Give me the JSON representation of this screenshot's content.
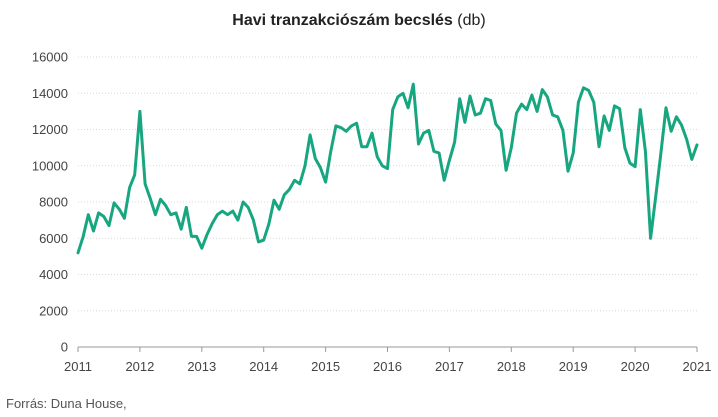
{
  "chart_data": {
    "type": "line",
    "title_bold": "Havi tranzakciószám becslés",
    "title_unit": "(db)",
    "xlabel": "",
    "ylabel": "",
    "x_ticks": [
      "2011",
      "2012",
      "2013",
      "2014",
      "2015",
      "2016",
      "2017",
      "2018",
      "2019",
      "2020",
      "2021"
    ],
    "y_ticks": [
      "16000",
      "14000",
      "12000",
      "10000",
      "8000",
      "6000",
      "4000",
      "2000",
      "0"
    ],
    "ylim": [
      0,
      16000
    ],
    "xlim": [
      "2011-01",
      "2021-01"
    ],
    "grid": "horizontal",
    "line_color": "#17a680",
    "series": [
      {
        "x": [
          "2011-01",
          "2011-02",
          "2011-03",
          "2011-04",
          "2011-05",
          "2011-06",
          "2011-07",
          "2011-08",
          "2011-09",
          "2011-10",
          "2011-11",
          "2011-12",
          "2012-01",
          "2012-02",
          "2012-03",
          "2012-04",
          "2012-05",
          "2012-06",
          "2012-07",
          "2012-08",
          "2012-09",
          "2012-10",
          "2012-11",
          "2012-12",
          "2013-01",
          "2013-02",
          "2013-03",
          "2013-04",
          "2013-05",
          "2013-06",
          "2013-07",
          "2013-08",
          "2013-09",
          "2013-10",
          "2013-11",
          "2013-12",
          "2014-01",
          "2014-02",
          "2014-03",
          "2014-04",
          "2014-05",
          "2014-06",
          "2014-07",
          "2014-08",
          "2014-09",
          "2014-10",
          "2014-11",
          "2014-12",
          "2015-01",
          "2015-02",
          "2015-03",
          "2015-04",
          "2015-05",
          "2015-06",
          "2015-07",
          "2015-08",
          "2015-09",
          "2015-10",
          "2015-11",
          "2015-12",
          "2016-01",
          "2016-02",
          "2016-03",
          "2016-04",
          "2016-05",
          "2016-06",
          "2016-07",
          "2016-08",
          "2016-09",
          "2016-10",
          "2016-11",
          "2016-12",
          "2017-01",
          "2017-02",
          "2017-03",
          "2017-04",
          "2017-05",
          "2017-06",
          "2017-07",
          "2017-08",
          "2017-09",
          "2017-10",
          "2017-11",
          "2017-12",
          "2018-01",
          "2018-02",
          "2018-03",
          "2018-04",
          "2018-05",
          "2018-06",
          "2018-07",
          "2018-08",
          "2018-09",
          "2018-10",
          "2018-11",
          "2018-12",
          "2019-01",
          "2019-02",
          "2019-03",
          "2019-04",
          "2019-05",
          "2019-06",
          "2019-07",
          "2019-08",
          "2019-09",
          "2019-10",
          "2019-11",
          "2019-12",
          "2020-01",
          "2020-02",
          "2020-03",
          "2020-04",
          "2020-05",
          "2020-06",
          "2020-07",
          "2020-08",
          "2020-09",
          "2020-10",
          "2020-11",
          "2020-12",
          "2021-01"
        ],
        "values": [
          5200,
          6100,
          7300,
          6400,
          7400,
          7200,
          6700,
          7950,
          7600,
          7100,
          8800,
          9500,
          13000,
          9000,
          8200,
          7300,
          8150,
          7800,
          7300,
          7400,
          6500,
          7700,
          6100,
          6100,
          5450,
          6200,
          6800,
          7300,
          7500,
          7300,
          7500,
          7000,
          8000,
          7700,
          7000,
          5800,
          5900,
          6800,
          8100,
          7600,
          8400,
          8700,
          9200,
          9000,
          10000,
          11700,
          10400,
          9900,
          9100,
          10800,
          12200,
          12100,
          11900,
          12200,
          12350,
          11050,
          11050,
          11800,
          10500,
          10000,
          9850,
          13100,
          13800,
          14000,
          13200,
          14500,
          11200,
          11800,
          11950,
          10800,
          10700,
          9200,
          10300,
          11300,
          13700,
          12400,
          13850,
          12800,
          12900,
          13700,
          13600,
          12300,
          11950,
          9750,
          11000,
          12900,
          13400,
          13100,
          13900,
          13000,
          14200,
          13800,
          12800,
          12700,
          11950,
          9700,
          10700,
          13500,
          14300,
          14150,
          13500,
          11050,
          12750,
          11950,
          13300,
          13150,
          11000,
          10150,
          9950,
          13100,
          10800,
          6000,
          8300,
          10700,
          13200,
          11900,
          12700,
          12250,
          11450,
          10350,
          11150
        ]
      }
    ]
  },
  "source": "Forrás: Duna House,"
}
